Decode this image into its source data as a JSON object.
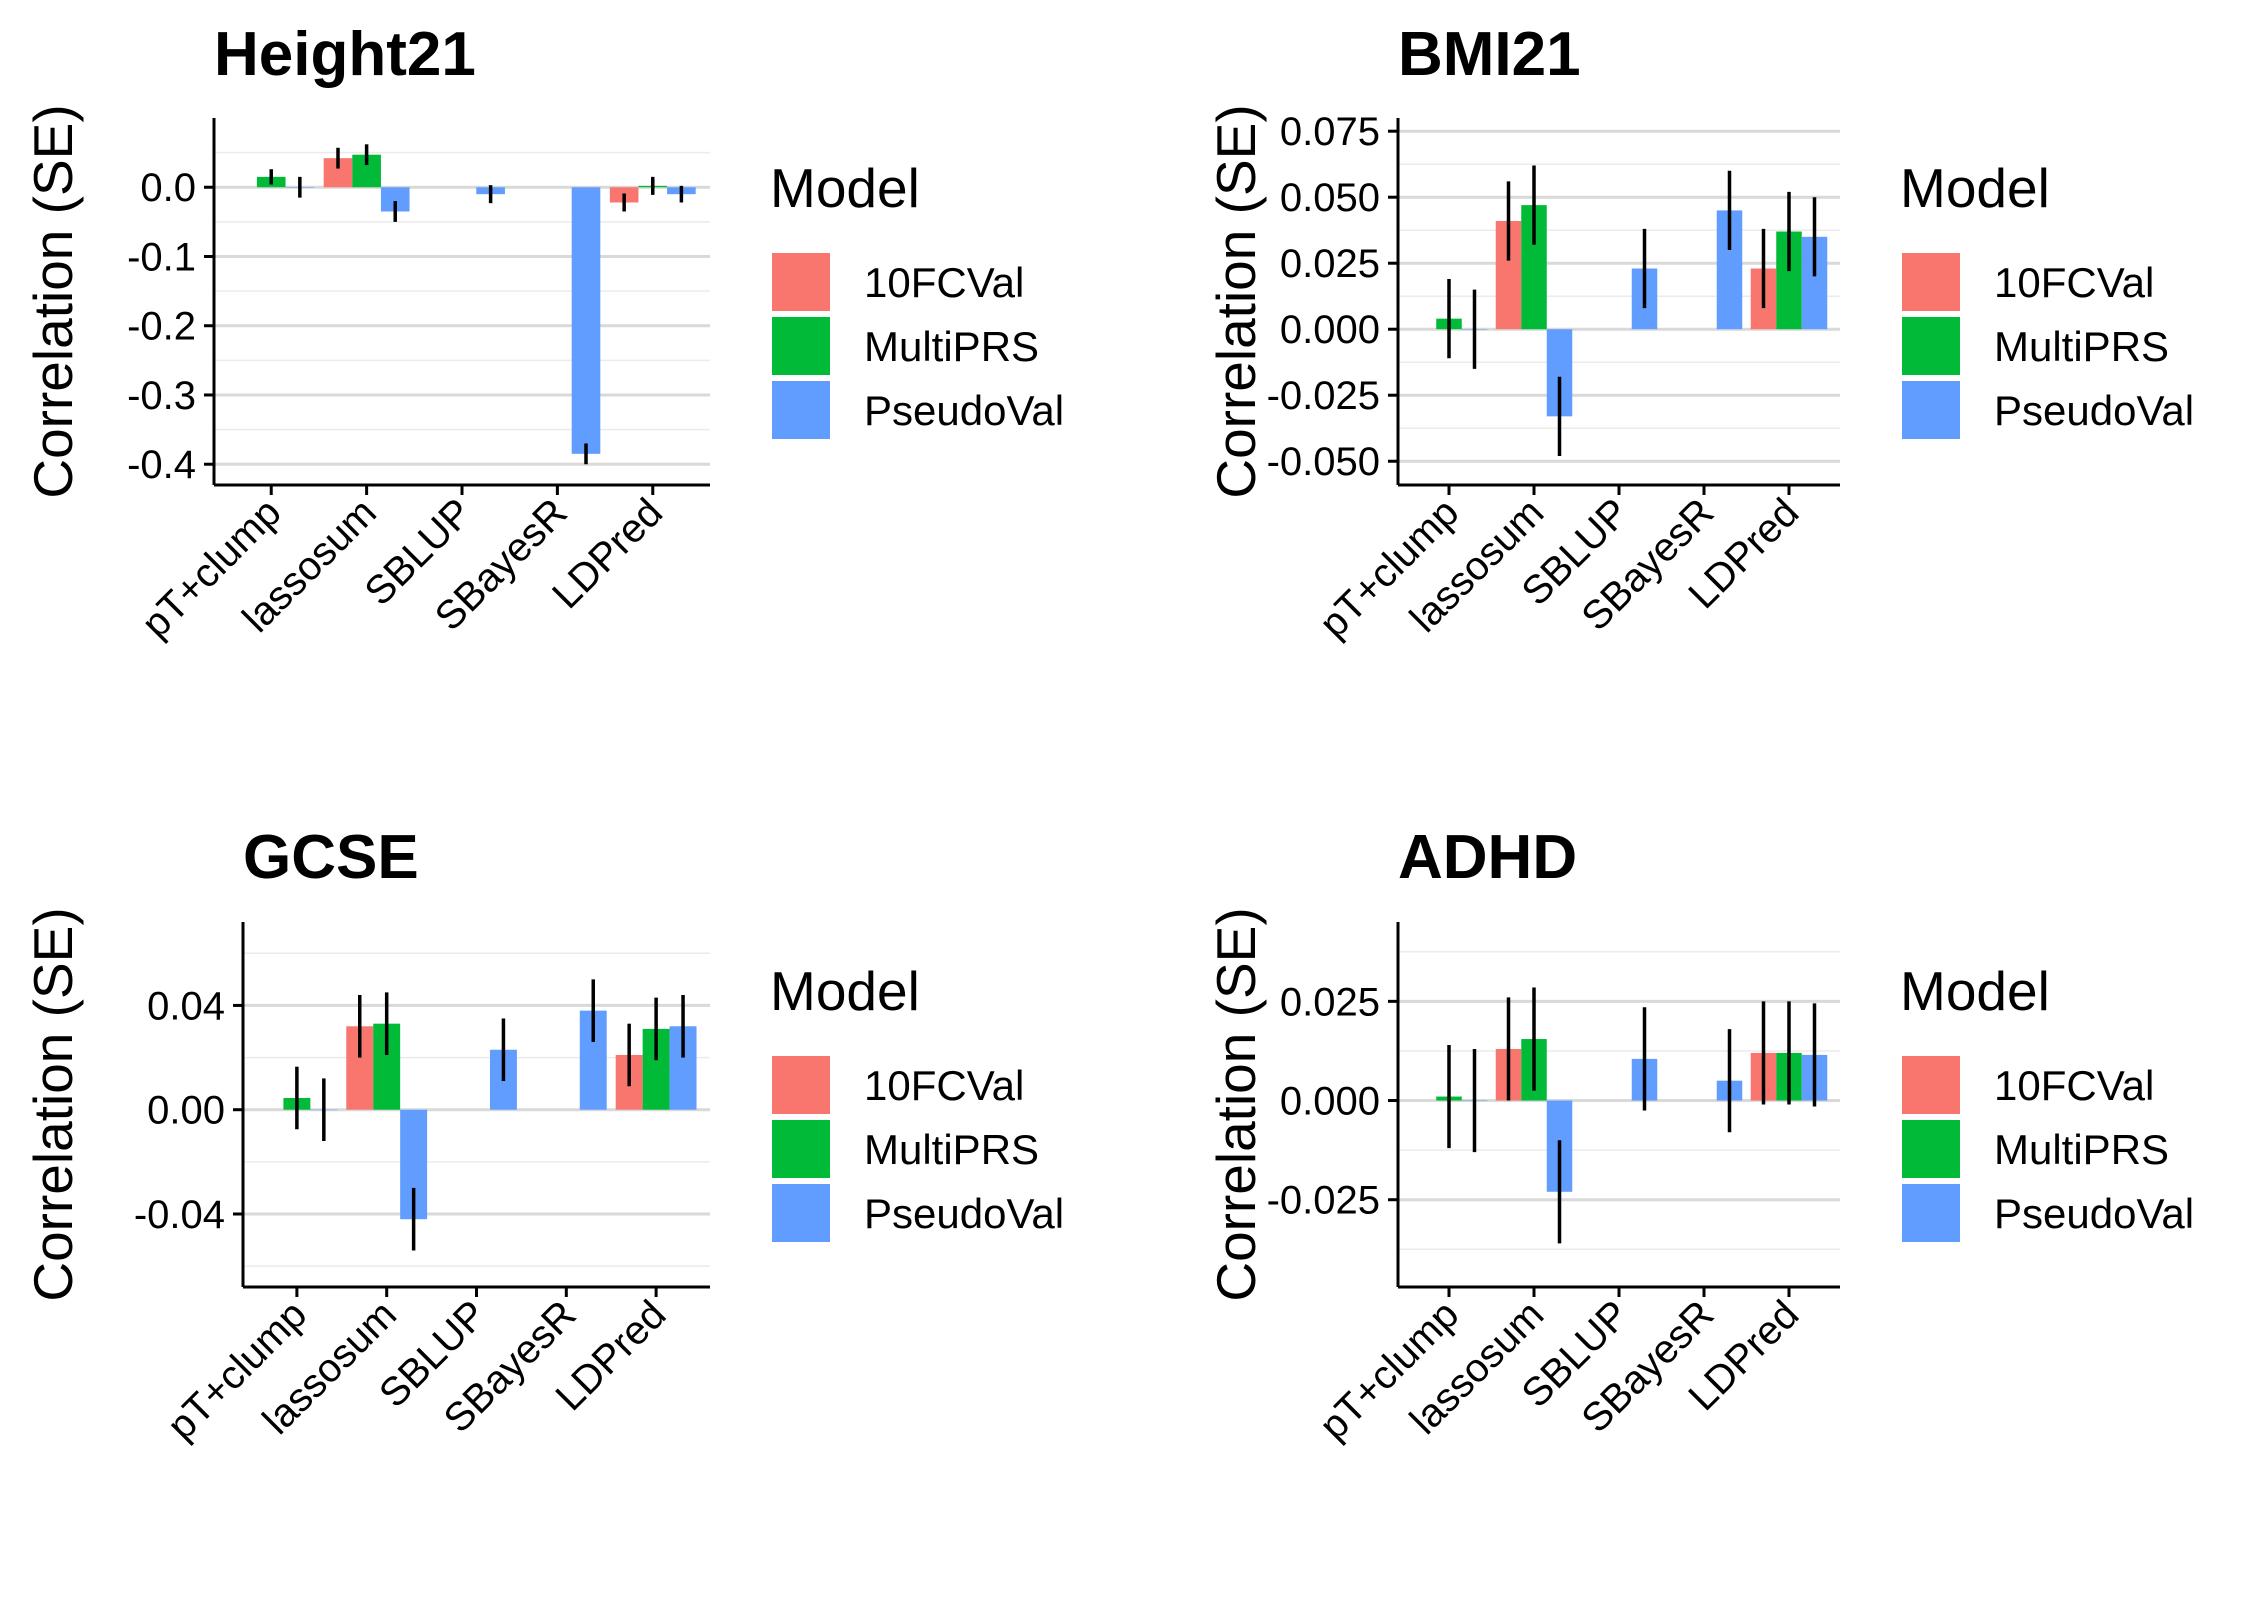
{
  "chart_data": [
    {
      "type": "bar",
      "title": "Height21",
      "ylabel": "Correlation (SE)",
      "xlabel": "",
      "categories": [
        "pT+clump",
        "lassosum",
        "SBLUP",
        "SBayesR",
        "LDPred"
      ],
      "ylim": [
        -0.43,
        0.1
      ],
      "yticks": [
        0.0,
        -0.1,
        -0.2,
        -0.3,
        -0.4
      ],
      "ytick_labels": [
        "0.0",
        "-0.1",
        "-0.2",
        "-0.3",
        "-0.4"
      ],
      "legend_title": "Model",
      "legend_position": "right",
      "grid": true,
      "series": [
        {
          "name": "10FCVal",
          "color": "#F8766D",
          "values": [
            null,
            0.042,
            null,
            null,
            -0.022
          ],
          "se": [
            null,
            0.015,
            null,
            null,
            0.013
          ]
        },
        {
          "name": "MultiPRS",
          "color": "#00BA38",
          "values": [
            0.015,
            0.047,
            null,
            null,
            0.002
          ],
          "se": [
            0.011,
            0.015,
            null,
            null,
            0.013
          ]
        },
        {
          "name": "PseudoVal",
          "color": "#619CFF",
          "values": [
            0.0,
            -0.035,
            -0.01,
            -0.385,
            -0.01
          ],
          "se": [
            0.015,
            0.015,
            0.013,
            0.015,
            0.012
          ]
        }
      ]
    },
    {
      "type": "bar",
      "title": "BMI21",
      "ylabel": "Correlation (SE)",
      "xlabel": "",
      "categories": [
        "pT+clump",
        "lassosum",
        "SBLUP",
        "SBayesR",
        "LDPred"
      ],
      "ylim": [
        -0.059,
        0.08
      ],
      "yticks": [
        0.075,
        0.05,
        0.025,
        0.0,
        -0.025,
        -0.05
      ],
      "ytick_labels": [
        "0.075",
        "0.050",
        "0.025",
        "0.000",
        "-0.025",
        "-0.050"
      ],
      "legend_title": "Model",
      "legend_position": "right",
      "grid": true,
      "series": [
        {
          "name": "10FCVal",
          "color": "#F8766D",
          "values": [
            null,
            0.041,
            null,
            null,
            0.023
          ],
          "se": [
            null,
            0.015,
            null,
            null,
            0.015
          ]
        },
        {
          "name": "MultiPRS",
          "color": "#00BA38",
          "values": [
            0.004,
            0.047,
            null,
            null,
            0.037
          ],
          "se": [
            0.015,
            0.015,
            null,
            null,
            0.015
          ]
        },
        {
          "name": "PseudoVal",
          "color": "#619CFF",
          "values": [
            0.0,
            -0.033,
            0.023,
            0.045,
            0.035
          ],
          "se": [
            0.015,
            0.015,
            0.015,
            0.015,
            0.015
          ]
        }
      ]
    },
    {
      "type": "bar",
      "title": "GCSE",
      "ylabel": "Correlation (SE)",
      "xlabel": "",
      "categories": [
        "pT+clump",
        "lassosum",
        "SBLUP",
        "SBayesR",
        "LDPred"
      ],
      "ylim": [
        -0.068,
        0.072
      ],
      "yticks": [
        0.04,
        0.0,
        -0.04
      ],
      "ytick_labels": [
        "0.04",
        "0.00",
        "-0.04"
      ],
      "legend_title": "Model",
      "legend_position": "right",
      "grid": true,
      "series": [
        {
          "name": "10FCVal",
          "color": "#F8766D",
          "values": [
            null,
            0.032,
            null,
            null,
            0.021
          ],
          "se": [
            null,
            0.012,
            null,
            null,
            0.012
          ]
        },
        {
          "name": "MultiPRS",
          "color": "#00BA38",
          "values": [
            0.0045,
            0.033,
            null,
            null,
            0.031
          ],
          "se": [
            0.012,
            0.012,
            null,
            null,
            0.012
          ]
        },
        {
          "name": "PseudoVal",
          "color": "#619CFF",
          "values": [
            0.0,
            -0.042,
            0.023,
            0.038,
            0.032
          ],
          "se": [
            0.012,
            0.012,
            0.012,
            0.012,
            0.012
          ]
        }
      ]
    },
    {
      "type": "bar",
      "title": "ADHD",
      "ylabel": "Correlation (SE)",
      "xlabel": "",
      "categories": [
        "pT+clump",
        "lassosum",
        "SBLUP",
        "SBayesR",
        "LDPred"
      ],
      "ylim": [
        -0.047,
        0.045
      ],
      "yticks": [
        0.025,
        0.0,
        -0.025
      ],
      "ytick_labels": [
        "0.025",
        "0.000",
        "-0.025"
      ],
      "legend_title": "Model",
      "legend_position": "right",
      "grid": true,
      "series": [
        {
          "name": "10FCVal",
          "color": "#F8766D",
          "values": [
            null,
            0.013,
            null,
            null,
            0.012
          ],
          "se": [
            null,
            0.013,
            null,
            null,
            0.013
          ]
        },
        {
          "name": "MultiPRS",
          "color": "#00BA38",
          "values": [
            0.001,
            0.0155,
            null,
            null,
            0.012
          ],
          "se": [
            0.013,
            0.013,
            null,
            null,
            0.013
          ]
        },
        {
          "name": "PseudoVal",
          "color": "#619CFF",
          "values": [
            0.0,
            -0.023,
            0.0105,
            0.005,
            0.0115
          ],
          "se": [
            0.013,
            0.013,
            0.013,
            0.013,
            0.013
          ]
        }
      ]
    }
  ]
}
